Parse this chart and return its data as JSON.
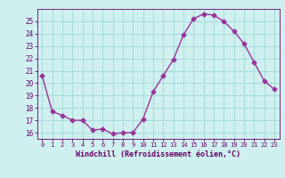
{
  "x": [
    0,
    1,
    2,
    3,
    4,
    5,
    6,
    7,
    8,
    9,
    10,
    11,
    12,
    13,
    14,
    15,
    16,
    17,
    18,
    19,
    20,
    21,
    22,
    23
  ],
  "y": [
    20.6,
    17.7,
    17.4,
    17.0,
    17.0,
    16.2,
    16.3,
    15.9,
    16.0,
    16.0,
    17.1,
    19.3,
    20.6,
    21.9,
    23.9,
    25.2,
    25.6,
    25.5,
    25.0,
    24.2,
    23.2,
    21.7,
    20.2,
    19.5
  ],
  "line_color": "#993399",
  "marker": "D",
  "marker_size": 2.5,
  "bg_color": "#d0f0f0",
  "grid_color": "#aadddd",
  "xlabel": "Windchill (Refroidissement éolien,°C)",
  "xlabel_color": "#660066",
  "tick_color": "#660066",
  "ylim": [
    15.5,
    26.0
  ],
  "yticks": [
    16,
    17,
    18,
    19,
    20,
    21,
    22,
    23,
    24,
    25
  ],
  "xticks": [
    0,
    1,
    2,
    3,
    4,
    5,
    6,
    7,
    8,
    9,
    10,
    11,
    12,
    13,
    14,
    15,
    16,
    17,
    18,
    19,
    20,
    21,
    22,
    23
  ]
}
